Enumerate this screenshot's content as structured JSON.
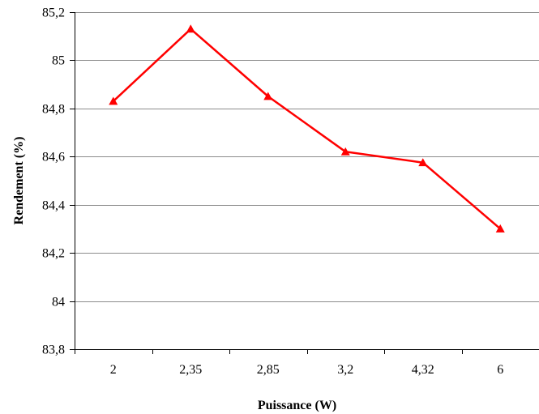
{
  "chart_data": {
    "type": "line",
    "title": "",
    "xlabel": "Puissance (W)",
    "ylabel": "Rendement (%)",
    "categories": [
      "2",
      "2,35",
      "2,85",
      "3,2",
      "4,32",
      "6"
    ],
    "series": [
      {
        "values": [
          84.83,
          85.13,
          84.85,
          84.62,
          84.575,
          84.3
        ],
        "color": "#ff0000",
        "marker": "triangle"
      }
    ],
    "ylim": [
      83.8,
      85.2
    ],
    "ytick_step": 0.2,
    "ytick_labels": [
      "83,8",
      "84",
      "84,2",
      "84,4",
      "84,6",
      "84,8",
      "85",
      "85,2"
    ],
    "grid": "horizontal",
    "legend": "none"
  }
}
